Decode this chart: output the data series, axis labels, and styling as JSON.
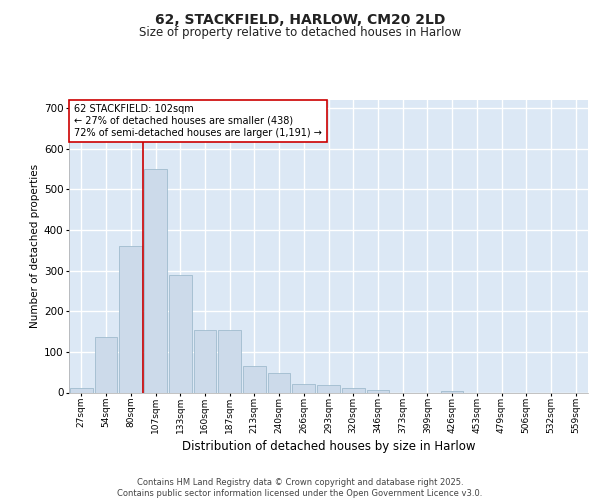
{
  "title": "62, STACKFIELD, HARLOW, CM20 2LD",
  "subtitle": "Size of property relative to detached houses in Harlow",
  "xlabel": "Distribution of detached houses by size in Harlow",
  "ylabel": "Number of detached properties",
  "categories": [
    "27sqm",
    "54sqm",
    "80sqm",
    "107sqm",
    "133sqm",
    "160sqm",
    "187sqm",
    "213sqm",
    "240sqm",
    "266sqm",
    "293sqm",
    "320sqm",
    "346sqm",
    "373sqm",
    "399sqm",
    "426sqm",
    "453sqm",
    "479sqm",
    "506sqm",
    "532sqm",
    "559sqm"
  ],
  "values": [
    10,
    137,
    360,
    550,
    290,
    155,
    155,
    65,
    48,
    22,
    18,
    12,
    5,
    0,
    0,
    4,
    0,
    0,
    0,
    0,
    0
  ],
  "bar_color": "#ccdaea",
  "bar_edge_color": "#a0bcce",
  "vline_color": "#cc0000",
  "vline_index": 2.5,
  "annotation_text": "62 STACKFIELD: 102sqm\n← 27% of detached houses are smaller (438)\n72% of semi-detached houses are larger (1,191) →",
  "annotation_box_color": "#ffffff",
  "annotation_box_edge": "#cc0000",
  "bg_color": "#dce8f5",
  "plot_bg_color": "#dce8f5",
  "fig_bg_color": "#ffffff",
  "grid_color": "#ffffff",
  "footer": "Contains HM Land Registry data © Crown copyright and database right 2025.\nContains public sector information licensed under the Open Government Licence v3.0.",
  "ylim": [
    0,
    720
  ],
  "yticks": [
    0,
    100,
    200,
    300,
    400,
    500,
    600,
    700
  ]
}
